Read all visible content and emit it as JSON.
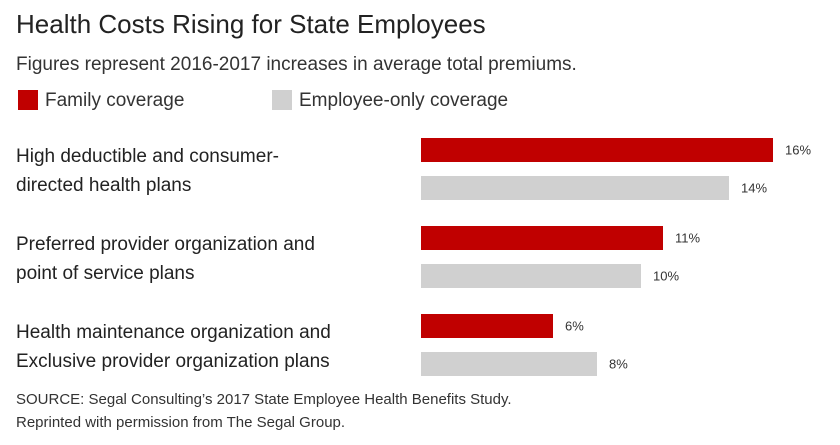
{
  "chart_data": {
    "type": "bar",
    "orientation": "horizontal",
    "title": "Health Costs Rising for State Employees",
    "subtitle": "Figures represent 2016-2017 increases in average total premiums.",
    "categories": [
      [
        "High deductible and consumer-",
        "directed health plans"
      ],
      [
        "Preferred provider organization and",
        "point of service plans"
      ],
      [
        "Health maintenance organization and",
        "Exclusive provider organization plans"
      ]
    ],
    "series": [
      {
        "name": "Family coverage",
        "color": "#c00000",
        "values": [
          16,
          11,
          6
        ],
        "value_labels": [
          "16%",
          "11%",
          "6%"
        ]
      },
      {
        "name": "Employee-only coverage",
        "color": "#d0d0d0",
        "values": [
          14,
          10,
          8
        ],
        "value_labels": [
          "14%",
          "10%",
          "8%"
        ]
      }
    ],
    "source": [
      "SOURCE: Segal Consulting’s 2017 State Employee Health Benefits Study.",
      "Reprinted with permission from The Segal Group."
    ]
  }
}
